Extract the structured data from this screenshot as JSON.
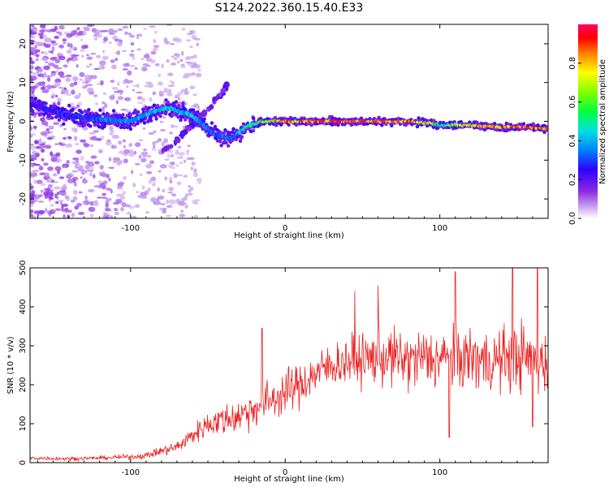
{
  "figure_title": "S124.2022.360.15.40.E33",
  "chart_data": [
    {
      "type": "heatmap",
      "xlabel": "Height of straight line (km)",
      "ylabel": "Frequency (Hz)",
      "xlim": [
        -165,
        170
      ],
      "ylim": [
        -25,
        25
      ],
      "xticks": [
        -100,
        0,
        100
      ],
      "yticks": [
        -20,
        -10,
        0,
        10,
        20
      ],
      "grid": false,
      "colormap": [
        "#ffffff",
        "#8a2be2",
        "#5a00ff",
        "#0000ff",
        "#00bfff",
        "#00ff66",
        "#ffff00",
        "#ff0000",
        "#ff0066"
      ],
      "colorbar": {
        "label": "Normalized spectral amplitude",
        "range": [
          0,
          1
        ],
        "ticks": [
          0.0,
          0.2,
          0.4,
          0.6,
          0.8
        ],
        "tick_labels": [
          "0.0",
          "0.2",
          "0.4",
          "0.6",
          "0.8"
        ]
      },
      "ridge": {
        "description_points_x": [
          -165,
          -140,
          -120,
          -100,
          -85,
          -75,
          -60,
          -45,
          -35,
          -25,
          -15,
          0,
          20,
          40,
          60,
          80,
          95,
          100,
          105,
          120,
          140,
          160,
          170
        ],
        "frequency_y": [
          4.5,
          1.5,
          0.5,
          0.0,
          2.5,
          3.5,
          1.5,
          -3.5,
          -4.5,
          -1.5,
          0.0,
          0.0,
          0.0,
          0.0,
          0.0,
          0.0,
          -0.5,
          -1.0,
          -1.0,
          -1.0,
          -1.5,
          -1.5,
          -2.0
        ],
        "amplitude": [
          0.25,
          0.3,
          0.35,
          0.4,
          0.4,
          0.45,
          0.45,
          0.35,
          0.35,
          0.5,
          0.7,
          0.85,
          0.9,
          0.95,
          0.95,
          0.9,
          0.7,
          0.5,
          0.6,
          0.8,
          0.9,
          0.9,
          0.9
        ]
      },
      "branch": {
        "x": [
          -80,
          -70,
          -60,
          -50,
          -40,
          -35
        ],
        "frequency_y": [
          -8,
          -5,
          -1,
          3,
          8,
          11
        ]
      }
    },
    {
      "type": "line",
      "xlabel": "Height of straight line (km)",
      "ylabel": "SNR (10 * v/v)",
      "xlim": [
        -165,
        170
      ],
      "ylim": [
        0,
        500
      ],
      "xticks": [
        -100,
        0,
        100
      ],
      "yticks": [
        0,
        100,
        200,
        300,
        400,
        500
      ],
      "grid": false,
      "series": [
        {
          "color": "#ee2020",
          "envelope_x": [
            -165,
            -140,
            -120,
            -100,
            -90,
            -80,
            -70,
            -60,
            -50,
            -40,
            -30,
            -20,
            -10,
            0,
            10,
            20,
            30,
            40,
            50,
            60,
            70,
            80,
            90,
            100,
            110,
            120,
            130,
            140,
            150,
            160,
            170
          ],
          "mean_y": [
            12,
            10,
            12,
            15,
            18,
            30,
            40,
            70,
            100,
            110,
            120,
            140,
            160,
            180,
            200,
            230,
            250,
            260,
            265,
            270,
            270,
            260,
            270,
            265,
            265,
            270,
            260,
            265,
            275,
            260,
            260
          ],
          "spread": [
            6,
            6,
            6,
            8,
            10,
            15,
            20,
            30,
            40,
            50,
            55,
            60,
            65,
            70,
            70,
            70,
            70,
            75,
            80,
            90,
            90,
            95,
            95,
            100,
            100,
            100,
            100,
            100,
            110,
            110,
            100
          ],
          "peaks": [
            {
              "x": -15,
              "y": 345
            },
            {
              "x": 45,
              "y": 440
            },
            {
              "x": 60,
              "y": 455
            },
            {
              "x": 110,
              "y": 490
            },
            {
              "x": 147,
              "y": 500
            },
            {
              "x": 163,
              "y": 500
            }
          ],
          "troughs": [
            {
              "x": 106,
              "y": 65
            },
            {
              "x": 160,
              "y": 92
            }
          ]
        }
      ]
    }
  ]
}
